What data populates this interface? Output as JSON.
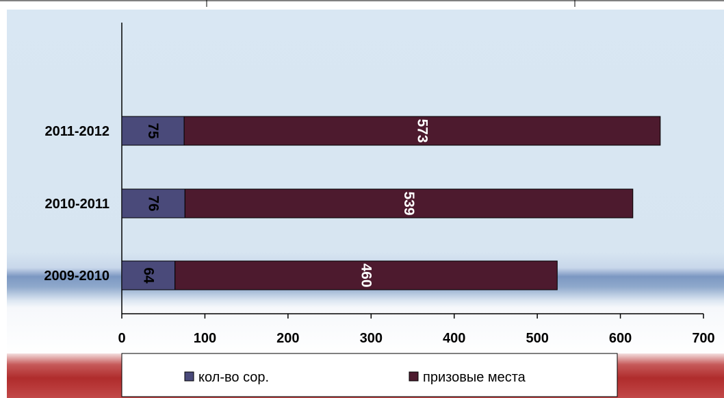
{
  "chart_data": {
    "type": "bar",
    "orientation": "horizontal",
    "stacked": true,
    "categories": [
      "2011-2012",
      "2010-2011",
      "2009-2010"
    ],
    "series": [
      {
        "name": "кол-во сор.",
        "values": [
          75,
          76,
          64
        ],
        "color": "#4a4a7a"
      },
      {
        "name": "призовые места",
        "values": [
          573,
          539,
          460
        ],
        "color": "#4d1a2e"
      }
    ],
    "x_ticks": [
      "0",
      "100",
      "200",
      "300",
      "400",
      "500",
      "600",
      "700"
    ],
    "xlim": [
      0,
      700
    ],
    "grid": false,
    "legend_position": "bottom",
    "colors": {
      "background_top": "#d6e6f2",
      "band": "#7f9cc4",
      "legend_band": "#b33434"
    }
  }
}
